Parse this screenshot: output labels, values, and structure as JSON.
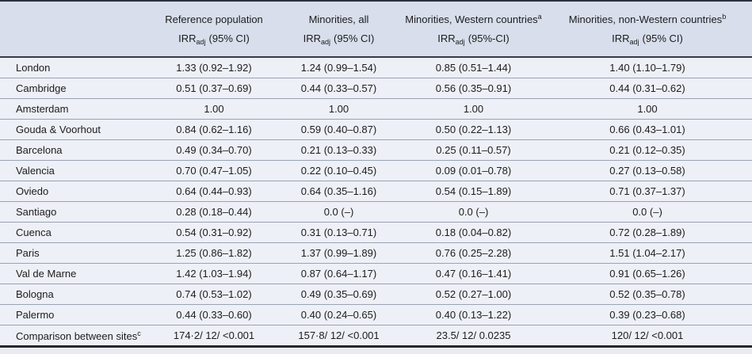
{
  "colors": {
    "header_bg": "#d8deec",
    "row_bg": "#edf0f6",
    "thick_border": "#2a3140",
    "thin_border": "#9aa2b4",
    "text": "#1c1c1c"
  },
  "table": {
    "header": {
      "site_col": "",
      "cols": [
        {
          "title": "Reference population",
          "sup": "",
          "stat": "IRR",
          "stat_sub": "adj",
          "stat_rest": "(95% CI)"
        },
        {
          "title": "Minorities, all",
          "sup": "",
          "stat": "IRR",
          "stat_sub": "adj",
          "stat_rest": "(95% CI)"
        },
        {
          "title": "Minorities, Western countries",
          "sup": "a",
          "stat": "IRR",
          "stat_sub": "adj",
          "stat_rest": "(95%-CI)"
        },
        {
          "title": "Minorities, non-Western countries",
          "sup": "b",
          "stat": "IRR",
          "stat_sub": "adj",
          "stat_rest": "(95% CI)"
        }
      ]
    },
    "rows": [
      {
        "site": "London",
        "values": [
          "1.33 (0.92–1.92)",
          "1.24 (0.99–1.54)",
          "0.85 (0.51–1.44)",
          "1.40 (1.10–1.79)"
        ]
      },
      {
        "site": "Cambridge",
        "values": [
          "0.51 (0.37–0.69)",
          "0.44 (0.33–0.57)",
          "0.56 (0.35–0.91)",
          "0.44 (0.31–0.62)"
        ]
      },
      {
        "site": "Amsterdam",
        "values": [
          "1.00",
          "1.00",
          "1.00",
          "1.00"
        ]
      },
      {
        "site": "Gouda & Voorhout",
        "values": [
          "0.84 (0.62–1.16)",
          "0.59 (0.40–0.87)",
          "0.50 (0.22–1.13)",
          "0.66 (0.43–1.01)"
        ]
      },
      {
        "site": "Barcelona",
        "values": [
          "0.49 (0.34–0.70)",
          "0.21 (0.13–0.33)",
          "0.25 (0.11–0.57)",
          "0.21 (0.12–0.35)"
        ]
      },
      {
        "site": "Valencia",
        "values": [
          "0.70 (0.47–1.05)",
          "0.22 (0.10–0.45)",
          "0.09 (0.01–0.78)",
          "0.27 (0.13–0.58)"
        ]
      },
      {
        "site": "Oviedo",
        "values": [
          "0.64 (0.44–0.93)",
          "0.64 (0.35–1.16)",
          "0.54 (0.15–1.89)",
          "0.71 (0.37–1.37)"
        ]
      },
      {
        "site": "Santiago",
        "values": [
          "0.28 (0.18–0.44)",
          "0.0 (–)",
          "0.0 (–)",
          "0.0 (–)"
        ]
      },
      {
        "site": "Cuenca",
        "values": [
          "0.54 (0.31–0.92)",
          "0.31 (0.13–0.71)",
          "0.18 (0.04–0.82)",
          "0.72 (0.28–1.89)"
        ]
      },
      {
        "site": "Paris",
        "values": [
          "1.25 (0.86–1.82)",
          "1.37 (0.99–1.89)",
          "0.76 (0.25–2.28)",
          "1.51 (1.04–2.17)"
        ]
      },
      {
        "site": "Val de Marne",
        "values": [
          "1.42 (1.03–1.94)",
          "0.87 (0.64–1.17)",
          "0.47 (0.16–1.41)",
          "0.91 (0.65–1.26)"
        ]
      },
      {
        "site": "Bologna",
        "values": [
          "0.74 (0.53–1.02)",
          "0.49 (0.35–0.69)",
          "0.52 (0.27–1.00)",
          "0.52 (0.35–0.78)"
        ]
      },
      {
        "site": "Palermo",
        "values": [
          "0.44 (0.33–0.60)",
          "0.40 (0.24–0.65)",
          "0.40 (0.13–1.22)",
          "0.39 (0.23–0.68)"
        ]
      }
    ],
    "comparison_row": {
      "site": "Comparison between sites",
      "sup": "c",
      "values": [
        "174·2/ 12/ <0.001",
        "157·8/ 12/ <0.001",
        "23.5/ 12/ 0.0235",
        "120/ 12/ <0.001"
      ]
    }
  }
}
